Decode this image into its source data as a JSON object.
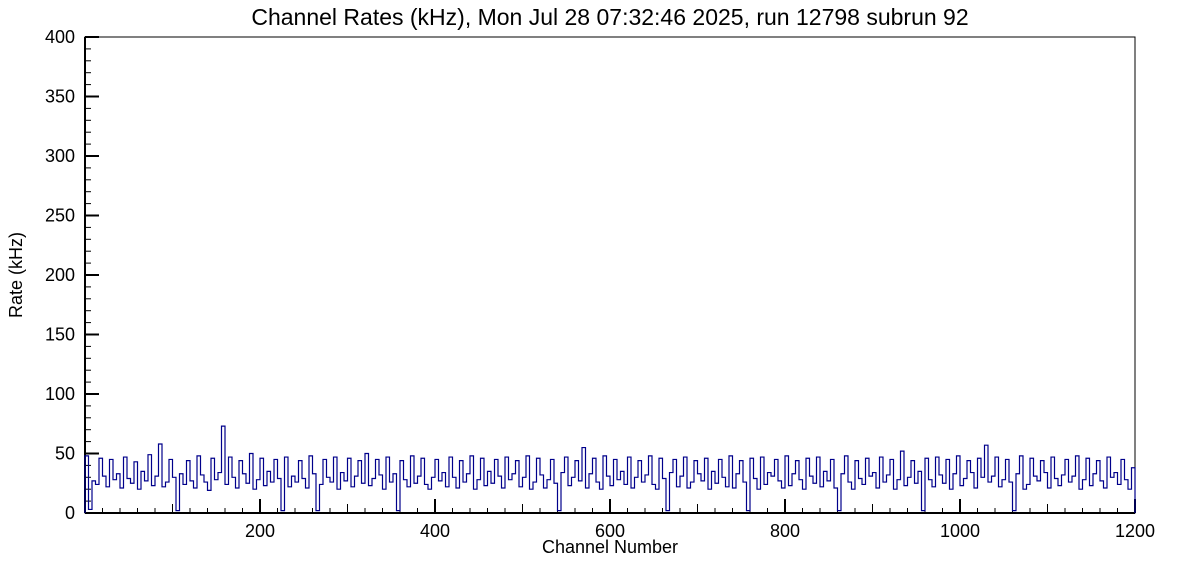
{
  "page": {
    "background": "#ffffff",
    "frame_color": "#000000"
  },
  "chart_data": {
    "type": "line",
    "style": "histogram-step",
    "title": "Channel Rates (kHz), Mon Jul 28 07:32:46 2025, run 12798 subrun 92",
    "xlabel": "Channel Number",
    "ylabel": "Rate (kHz)",
    "xlim": [
      0,
      1200
    ],
    "ylim": [
      0,
      400
    ],
    "x_tick_major": 200,
    "x_tick_medium": 100,
    "x_tick_minor": 20,
    "y_tick_major": 50,
    "y_tick_minor": 10,
    "x_tick_labels": [
      "200",
      "400",
      "600",
      "800",
      "1000",
      "1200"
    ],
    "y_tick_labels": [
      "0",
      "50",
      "100",
      "150",
      "200",
      "250",
      "300",
      "350",
      "400"
    ],
    "line_color": "#00008b",
    "legend": "none",
    "grid": "off",
    "bin_width": 4,
    "values": [
      48,
      3,
      27,
      24,
      46,
      31,
      22,
      45,
      28,
      33,
      21,
      47,
      29,
      25,
      43,
      20,
      35,
      27,
      49,
      23,
      31,
      58,
      22,
      26,
      45,
      30,
      2,
      33,
      24,
      44,
      27,
      21,
      48,
      32,
      26,
      19,
      46,
      28,
      34,
      73,
      24,
      47,
      30,
      21,
      44,
      33,
      25,
      50,
      20,
      28,
      46,
      23,
      35,
      26,
      45,
      29,
      2,
      47,
      22,
      31,
      26,
      44,
      29,
      21,
      48,
      33,
      2,
      24,
      45,
      30,
      26,
      47,
      20,
      34,
      27,
      46,
      22,
      31,
      44,
      25,
      50,
      23,
      29,
      45,
      32,
      20,
      47,
      26,
      33,
      2,
      44,
      28,
      22,
      48,
      25,
      31,
      46,
      24,
      20,
      30,
      45,
      27,
      34,
      22,
      47,
      30,
      21,
      44,
      26,
      33,
      48,
      20,
      28,
      46,
      23,
      35,
      25,
      45,
      31,
      21,
      47,
      28,
      33,
      44,
      22,
      30,
      48,
      20,
      26,
      46,
      32,
      21,
      28,
      45,
      25,
      2,
      34,
      47,
      23,
      30,
      44,
      27,
      55,
      21,
      33,
      46,
      26,
      20,
      48,
      31,
      23,
      45,
      28,
      35,
      24,
      47,
      21,
      30,
      44,
      26,
      32,
      48,
      24,
      20,
      46,
      29,
      2,
      34,
      45,
      22,
      31,
      47,
      21,
      26,
      44,
      33,
      27,
      46,
      20,
      35,
      25,
      45,
      30,
      22,
      48,
      21,
      33,
      44,
      26,
      2,
      46,
      29,
      20,
      47,
      24,
      34,
      31,
      45,
      27,
      21,
      48,
      23,
      33,
      44,
      28,
      20,
      46,
      31,
      25,
      47,
      22,
      35,
      27,
      45,
      21,
      2,
      33,
      48,
      26,
      20,
      44,
      29,
      24,
      46,
      31,
      34,
      21,
      47,
      26,
      32,
      45,
      20,
      28,
      52,
      23,
      30,
      44,
      25,
      35,
      2,
      46,
      28,
      22,
      47,
      32,
      25,
      45,
      20,
      33,
      48,
      23,
      29,
      44,
      34,
      21,
      46,
      30,
      57,
      26,
      31,
      47,
      22,
      28,
      45,
      26,
      2,
      33,
      48,
      20,
      24,
      46,
      31,
      27,
      44,
      34,
      21,
      47,
      29,
      23,
      32,
      45,
      26,
      31,
      48,
      20,
      28,
      46,
      23,
      33,
      44,
      27,
      21,
      47,
      30,
      34,
      24,
      45,
      28,
      20,
      38
    ]
  }
}
